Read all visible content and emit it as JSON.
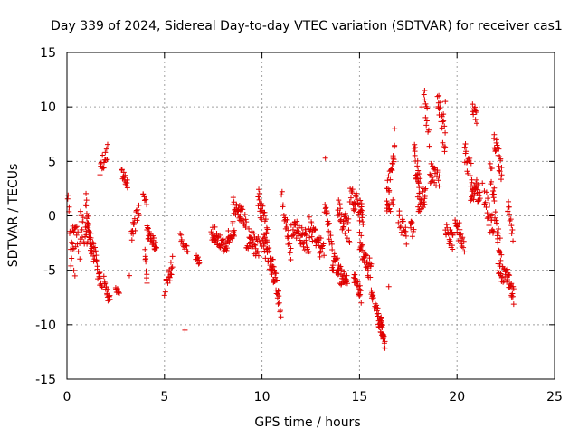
{
  "chart_data": {
    "type": "scatter",
    "title": "Day 339 of 2024, Sidereal Day-to-day VTEC variation (SDTVAR) for receiver cas1",
    "xlabel": "GPS time / hours",
    "ylabel": "SDTVAR / TECUs",
    "xlim": [
      0,
      25
    ],
    "ylim": [
      -15,
      15
    ],
    "xticks": [
      0,
      5,
      10,
      15,
      20,
      25
    ],
    "yticks": [
      -15,
      -10,
      -5,
      0,
      5,
      10,
      15
    ],
    "grid": true,
    "marker": "+",
    "color": "#e00000",
    "segments": [
      [
        0.0,
        0.8,
        0.4,
        -4.6,
        0.05,
        1.8
      ],
      [
        0.3,
        -1.0,
        0.7,
        -3.0,
        0.05,
        1.3
      ],
      [
        0.7,
        -0.5,
        1.1,
        -2.0,
        0.04,
        1.5
      ],
      [
        0.95,
        1.5,
        1.3,
        -3.5,
        0.03,
        1.0
      ],
      [
        1.2,
        -2.5,
        1.5,
        -4.0,
        0.03,
        0.8
      ],
      [
        1.5,
        -4.5,
        1.8,
        -6.5,
        0.03,
        0.8
      ],
      [
        1.7,
        4.5,
        2.1,
        6.0,
        0.03,
        0.8
      ],
      [
        1.9,
        -5.5,
        2.2,
        -7.8,
        0.03,
        0.7
      ],
      [
        2.5,
        -6.8,
        2.7,
        -7.2,
        0.05,
        0.3
      ],
      [
        2.8,
        4.3,
        3.1,
        2.5,
        0.03,
        0.8
      ],
      [
        3.3,
        -1.8,
        3.7,
        0.5,
        0.03,
        0.8
      ],
      [
        3.9,
        2.2,
        4.1,
        1.0,
        0.05,
        0.5
      ],
      [
        4.0,
        -3.0,
        4.1,
        -6.0,
        0.02,
        0.8
      ],
      [
        4.1,
        -1.5,
        4.6,
        -2.8,
        0.03,
        0.6
      ],
      [
        5.0,
        -7.0,
        5.4,
        -4.5,
        0.04,
        0.8
      ],
      [
        5.8,
        -2.0,
        6.2,
        -3.2,
        0.05,
        0.5
      ],
      [
        6.6,
        -3.8,
        6.8,
        -4.2,
        0.04,
        0.3
      ],
      [
        7.4,
        -1.5,
        8.0,
        -2.5,
        0.03,
        0.8
      ],
      [
        8.0,
        -3.0,
        8.6,
        -1.0,
        0.03,
        0.9
      ],
      [
        8.5,
        1.0,
        9.2,
        -0.5,
        0.03,
        0.9
      ],
      [
        9.2,
        -2.0,
        9.9,
        -3.0,
        0.03,
        1.0
      ],
      [
        9.8,
        1.5,
        10.3,
        -2.0,
        0.03,
        1.2
      ],
      [
        10.0,
        -2.0,
        10.6,
        -5.0,
        0.03,
        1.0
      ],
      [
        10.5,
        -4.5,
        11.0,
        -8.5,
        0.03,
        1.0
      ],
      [
        11.0,
        2.5,
        11.5,
        -4.0,
        0.03,
        1.2
      ],
      [
        11.5,
        -1.0,
        12.4,
        -2.5,
        0.03,
        1.0
      ],
      [
        12.4,
        -1.0,
        13.2,
        -3.5,
        0.03,
        1.0
      ],
      [
        13.2,
        0.8,
        13.6,
        -3.0,
        0.03,
        1.0
      ],
      [
        13.6,
        -4.0,
        14.4,
        -6.5,
        0.03,
        1.0
      ],
      [
        13.9,
        0.5,
        14.5,
        -1.5,
        0.03,
        1.2
      ],
      [
        14.5,
        2.0,
        15.2,
        0.0,
        0.03,
        1.0
      ],
      [
        14.7,
        -5.5,
        15.1,
        -7.5,
        0.03,
        0.8
      ],
      [
        15.0,
        -2.5,
        15.6,
        -5.5,
        0.03,
        1.2
      ],
      [
        15.6,
        -7.5,
        16.2,
        -10.5,
        0.03,
        0.8
      ],
      [
        16.1,
        -10.2,
        16.3,
        -12.0,
        0.02,
        0.6
      ],
      [
        16.4,
        0.5,
        16.7,
        1.0,
        0.05,
        0.5
      ],
      [
        16.4,
        2.0,
        16.8,
        6.0,
        0.03,
        1.0
      ],
      [
        17.0,
        0.0,
        17.4,
        -2.0,
        0.04,
        0.8
      ],
      [
        17.6,
        -0.5,
        17.8,
        -2.0,
        0.03,
        0.6
      ],
      [
        17.8,
        5.5,
        18.1,
        3.0,
        0.02,
        1.3
      ],
      [
        18.0,
        1.0,
        18.4,
        2.0,
        0.03,
        0.9
      ],
      [
        18.3,
        11.0,
        18.6,
        7.0,
        0.04,
        1.1
      ],
      [
        18.6,
        4.0,
        19.1,
        3.0,
        0.04,
        1.0
      ],
      [
        19.0,
        10.5,
        19.4,
        7.0,
        0.03,
        1.5
      ],
      [
        19.4,
        -1.0,
        19.8,
        -2.5,
        0.03,
        0.9
      ],
      [
        19.9,
        -1.0,
        20.4,
        -2.5,
        0.03,
        1.0
      ],
      [
        20.4,
        6.0,
        20.8,
        3.0,
        0.03,
        1.3
      ],
      [
        20.7,
        2.0,
        21.2,
        2.5,
        0.03,
        1.2
      ],
      [
        20.8,
        10.0,
        21.0,
        9.0,
        0.04,
        0.6
      ],
      [
        21.4,
        2.0,
        21.9,
        -2.0,
        0.03,
        1.2
      ],
      [
        21.7,
        4.5,
        22.3,
        -4.5,
        0.03,
        1.3
      ],
      [
        21.9,
        7.0,
        22.3,
        4.0,
        0.03,
        1.0
      ],
      [
        22.1,
        -5.0,
        22.6,
        -6.0,
        0.03,
        0.9
      ],
      [
        22.6,
        -5.5,
        22.9,
        -7.5,
        0.03,
        0.8
      ],
      [
        22.6,
        1.0,
        22.9,
        -2.0,
        0.04,
        0.8
      ]
    ],
    "points": [
      [
        0.2,
        -4.6
      ],
      [
        6.05,
        -10.5
      ],
      [
        13.25,
        5.3
      ],
      [
        16.8,
        8.0
      ],
      [
        16.5,
        -6.5
      ],
      [
        19.4,
        10.5
      ],
      [
        18.2,
        10.0
      ],
      [
        21.3,
        3.0
      ],
      [
        3.2,
        -5.5
      ],
      [
        20.0,
        -1.5
      ]
    ]
  }
}
